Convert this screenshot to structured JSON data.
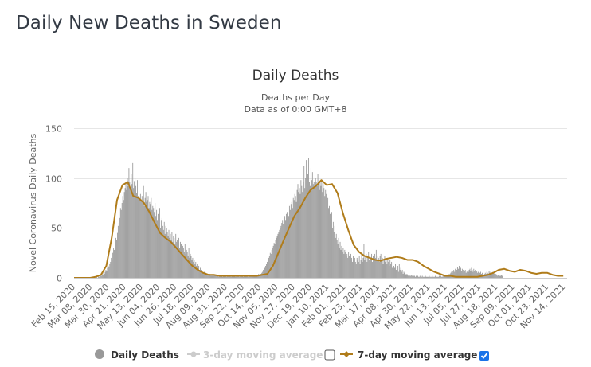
{
  "page": {
    "title": "Daily New Deaths in Sweden"
  },
  "legend": {
    "items": [
      {
        "label": "Daily Deaths",
        "color": "#999999",
        "enabled": true
      },
      {
        "label": "3-day moving average",
        "color": "#cccccc",
        "enabled": false,
        "checkbox_checked": false
      },
      {
        "label": "7-day moving average",
        "color": "#b07c1a",
        "enabled": true,
        "checkbox_checked": true
      }
    ]
  },
  "chart_data": {
    "type": "bar",
    "title": "Daily Deaths",
    "subtitle_lines": [
      "Deaths per Day",
      "Data as of 0:00 GMT+8"
    ],
    "xlabel": "",
    "ylabel": "Novel Coronavirus Daily Deaths",
    "ylim": [
      0,
      150
    ],
    "yticks": [
      0,
      50,
      100,
      150
    ],
    "grid": true,
    "start_date": "Feb 15, 2020",
    "num_days": 642,
    "xtick_every_days": 22,
    "xtick_labels": [
      "Feb 15, 2020",
      "Mar 08, 2020",
      "Mar 30, 2020",
      "Apr 21, 2020",
      "May 13, 2020",
      "Jun 04, 2020",
      "Jun 26, 2020",
      "Jul 18, 2020",
      "Aug 09, 2020",
      "Aug 31, 2020",
      "Sep 22, 2020",
      "Oct 14, 2020",
      "Nov 05, 2020",
      "Nov 27, 2020",
      "Dec 19, 2020",
      "Jan 10, 2021",
      "Feb 01, 2021",
      "Feb 23, 2021",
      "Mar 17, 2021",
      "Apr 08, 2021",
      "Apr 30, 2021",
      "May 22, 2021",
      "Jun 13, 2021",
      "Jul 05, 2021",
      "Jul 27, 2021",
      "Aug 18, 2021",
      "Sep 09, 2021",
      "Oct 01, 2021",
      "Oct 23, 2021",
      "Nov 14, 2021"
    ],
    "series": [
      {
        "name": "7-day moving average",
        "type": "line",
        "color": "#b07c1a",
        "sample_every_days": 7,
        "values": [
          0,
          0,
          0,
          0,
          1,
          3,
          12,
          40,
          78,
          93,
          96,
          82,
          80,
          75,
          66,
          55,
          45,
          40,
          36,
          30,
          24,
          18,
          12,
          8,
          5,
          3,
          3,
          2,
          2,
          2,
          2,
          2,
          2,
          2,
          2,
          3,
          4,
          12,
          25,
          38,
          50,
          62,
          70,
          80,
          88,
          92,
          98,
          93,
          94,
          85,
          65,
          48,
          33,
          26,
          22,
          20,
          18,
          17,
          19,
          20,
          21,
          20,
          18,
          18,
          16,
          12,
          9,
          6,
          4,
          2,
          2,
          1,
          1,
          1,
          1,
          1,
          2,
          3,
          5,
          8,
          9,
          7,
          6,
          8,
          7,
          5,
          4,
          5,
          5,
          3,
          2,
          2
        ]
      },
      {
        "name": "Daily Deaths",
        "type": "bar",
        "color": "#999999",
        "values": [
          0,
          0,
          0,
          0,
          0,
          0,
          0,
          0,
          0,
          0,
          0,
          0,
          0,
          0,
          0,
          0,
          0,
          0,
          0,
          0,
          0,
          0,
          0,
          0,
          0,
          0,
          1,
          0,
          1,
          1,
          0,
          2,
          1,
          2,
          3,
          2,
          4,
          3,
          5,
          4,
          6,
          8,
          7,
          10,
          12,
          11,
          14,
          16,
          20,
          18,
          25,
          30,
          28,
          36,
          40,
          38,
          45,
          52,
          55,
          60,
          70,
          68,
          75,
          82,
          78,
          86,
          90,
          95,
          88,
          100,
          92,
          110,
          96,
          88,
          104,
          94,
          115,
          90,
          97,
          100,
          92,
          85,
          98,
          82,
          88,
          80,
          84,
          78,
          82,
          75,
          92,
          72,
          80,
          86,
          76,
          78,
          82,
          70,
          76,
          74,
          80,
          68,
          72,
          70,
          66,
          75,
          62,
          68,
          58,
          64,
          55,
          70,
          50,
          58,
          60,
          52,
          48,
          56,
          44,
          52,
          50,
          46,
          42,
          48,
          40,
          44,
          38,
          46,
          36,
          42,
          40,
          34,
          44,
          36,
          38,
          32,
          40,
          30,
          36,
          34,
          28,
          32,
          30,
          26,
          34,
          24,
          28,
          26,
          22,
          30,
          20,
          24,
          22,
          18,
          20,
          16,
          18,
          14,
          16,
          12,
          14,
          10,
          12,
          8,
          10,
          8,
          7,
          6,
          5,
          6,
          4,
          5,
          3,
          4,
          3,
          2,
          4,
          3,
          2,
          3,
          2,
          3,
          2,
          3,
          2,
          2,
          3,
          2,
          1,
          2,
          3,
          2,
          2,
          1,
          3,
          2,
          2,
          2,
          1,
          2,
          3,
          2,
          2,
          2,
          1,
          2,
          2,
          3,
          2,
          2,
          1,
          2,
          3,
          2,
          2,
          1,
          2,
          2,
          3,
          2,
          1,
          2,
          2,
          3,
          2,
          2,
          1,
          2,
          2,
          3,
          2,
          2,
          2,
          3,
          2,
          3,
          2,
          3,
          3,
          2,
          4,
          3,
          3,
          4,
          5,
          6,
          8,
          7,
          10,
          12,
          14,
          16,
          18,
          20,
          22,
          25,
          24,
          28,
          30,
          32,
          35,
          34,
          38,
          40,
          42,
          44,
          46,
          48,
          50,
          52,
          55,
          58,
          54,
          60,
          62,
          58,
          64,
          66,
          70,
          62,
          72,
          68,
          74,
          76,
          70,
          80,
          78,
          84,
          82,
          76,
          88,
          94,
          86,
          90,
          84,
          98,
          92,
          86,
          96,
          112,
          90,
          100,
          118,
          94,
          104,
          120,
          96,
          92,
          110,
          98,
          106,
          94,
          96,
          90,
          100,
          96,
          92,
          104,
          94,
          88,
          96,
          92,
          98,
          86,
          94,
          90,
          82,
          88,
          84,
          78,
          80,
          70,
          72,
          64,
          60,
          66,
          50,
          56,
          46,
          52,
          40,
          44,
          38,
          34,
          40,
          30,
          36,
          28,
          32,
          26,
          30,
          24,
          28,
          26,
          22,
          24,
          20,
          26,
          22,
          18,
          24,
          20,
          16,
          22,
          18,
          20,
          16,
          14,
          20,
          18,
          16,
          22,
          14,
          18,
          24,
          16,
          20,
          34,
          18,
          22,
          24,
          16,
          20,
          26,
          18,
          22,
          20,
          24,
          16,
          22,
          18,
          24,
          20,
          28,
          18,
          22,
          20,
          16,
          22,
          24,
          18,
          20,
          14,
          18,
          22,
          16,
          18,
          14,
          20,
          16,
          12,
          18,
          14,
          16,
          10,
          14,
          12,
          10,
          14,
          8,
          10,
          12,
          6,
          14,
          8,
          10,
          6,
          8,
          4,
          6,
          5,
          4,
          3,
          4,
          3,
          2,
          3,
          2,
          2,
          3,
          2,
          1,
          2,
          2,
          1,
          2,
          1,
          2,
          1,
          1,
          2,
          1,
          1,
          2,
          1,
          1,
          1,
          2,
          1,
          1,
          1,
          1,
          2,
          1,
          1,
          1,
          2,
          1,
          1,
          1,
          2,
          1,
          1,
          1,
          1,
          2,
          1,
          2,
          1,
          1,
          2,
          1,
          2,
          2,
          3,
          2,
          3,
          4,
          3,
          4,
          5,
          6,
          5,
          7,
          8,
          6,
          9,
          10,
          8,
          11,
          9,
          12,
          8,
          10,
          7,
          9,
          8,
          6,
          7,
          8,
          5,
          6,
          7,
          6,
          8,
          9,
          7,
          10,
          8,
          6,
          9,
          7,
          8,
          6,
          7,
          5,
          6,
          4,
          5,
          6,
          4,
          5,
          4,
          3,
          4,
          5,
          4,
          6,
          5,
          4,
          7,
          5,
          6,
          4,
          5,
          6,
          5,
          4,
          3,
          4,
          3,
          2,
          3,
          2,
          2,
          2,
          3,
          2
        ]
      }
    ]
  }
}
